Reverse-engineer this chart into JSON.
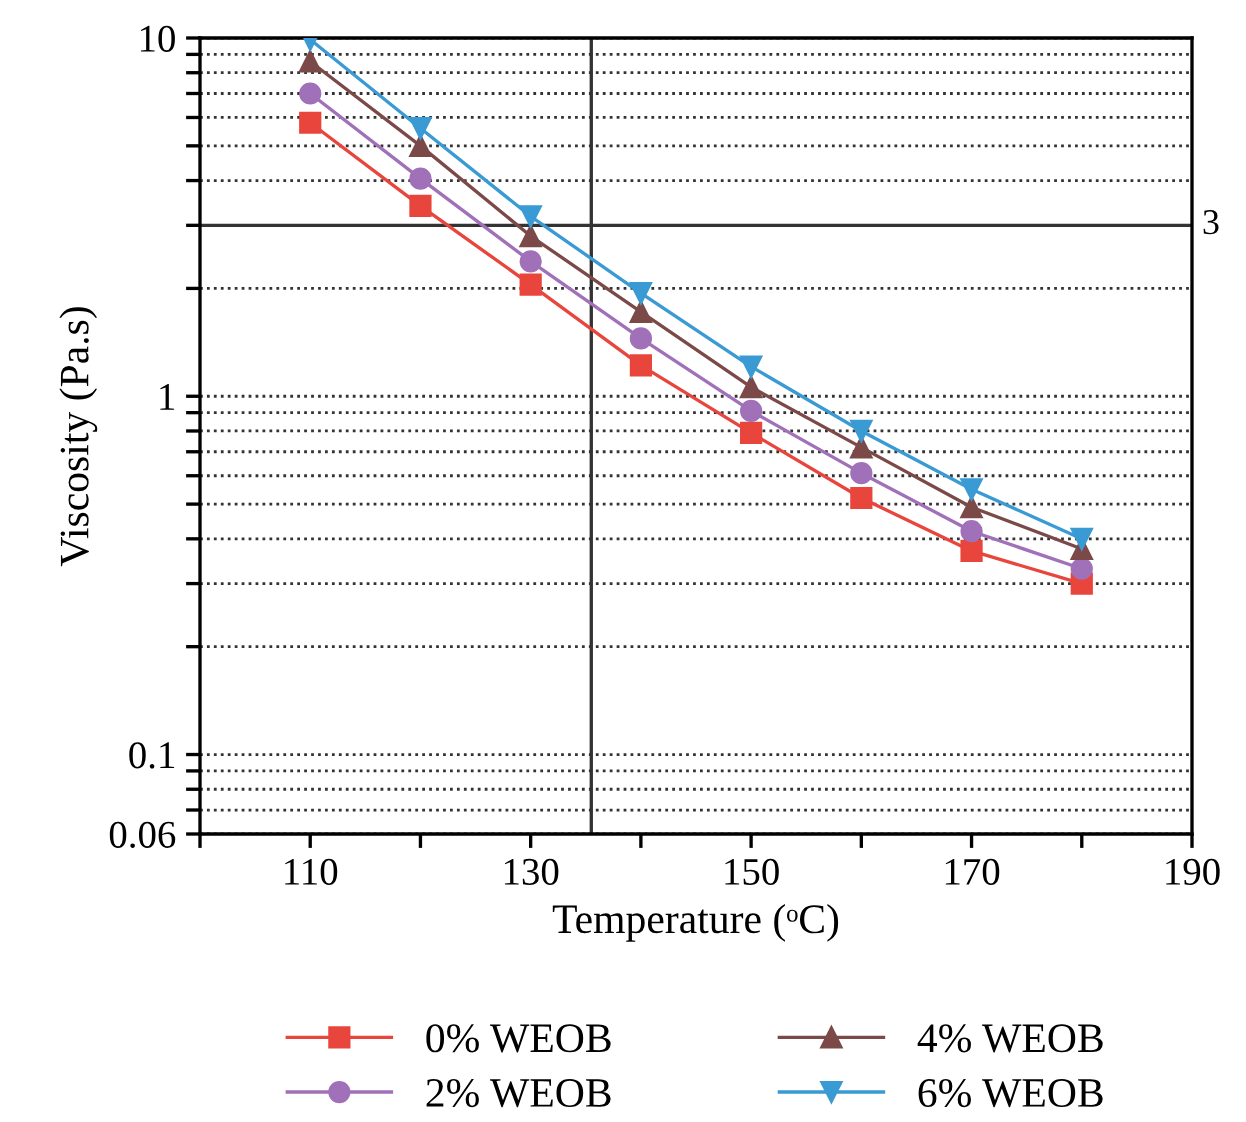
{
  "chart_data": {
    "type": "line",
    "xlabel": "Temperature (ᵒC)",
    "ylabel": "Viscosity (Pa.s)",
    "x": [
      110,
      120,
      130,
      140,
      150,
      160,
      170,
      180
    ],
    "series": [
      {
        "name": "0% WEOB",
        "color": "#e8453c",
        "marker": "square",
        "values": [
          5.8,
          3.4,
          2.05,
          1.22,
          0.79,
          0.52,
          0.37,
          0.3
        ]
      },
      {
        "name": "2% WEOB",
        "color": "#a070b8",
        "marker": "circle",
        "values": [
          7.0,
          4.05,
          2.38,
          1.45,
          0.91,
          0.61,
          0.42,
          0.33
        ]
      },
      {
        "name": "4% WEOB",
        "color": "#7b4a48",
        "marker": "triangle",
        "values": [
          8.6,
          5.0,
          2.8,
          1.72,
          1.06,
          0.72,
          0.49,
          0.375
        ]
      },
      {
        "name": "6% WEOB",
        "color": "#3a9ad4",
        "marker": "triangle_down",
        "values": [
          9.9,
          5.6,
          3.18,
          1.94,
          1.21,
          0.8,
          0.55,
          0.4
        ]
      }
    ],
    "log": "y",
    "xlim": [
      100,
      190
    ],
    "ylim": [
      0.06,
      10
    ],
    "xticks": [
      {
        "value": 100,
        "label": null
      },
      110,
      {
        "value": 120,
        "label": null
      },
      130,
      {
        "value": 140,
        "label": null
      },
      150,
      {
        "value": 160,
        "label": null
      },
      170,
      {
        "value": 180,
        "label": null
      },
      190
    ],
    "yticks": [
      {
        "value": 0.06,
        "label": "0.06"
      },
      {
        "value": 0.07,
        "label": null
      },
      {
        "value": 0.08,
        "label": null
      },
      {
        "value": 0.09,
        "label": null
      },
      {
        "value": 0.1,
        "label": "0.1"
      },
      {
        "value": 0.2,
        "label": null
      },
      {
        "value": 0.3,
        "label": null
      },
      {
        "value": 0.4,
        "label": null
      },
      {
        "value": 0.5,
        "label": null
      },
      {
        "value": 0.6,
        "label": null
      },
      {
        "value": 0.7,
        "label": null
      },
      {
        "value": 0.8,
        "label": null
      },
      {
        "value": 0.9,
        "label": null
      },
      1,
      {
        "value": 2,
        "label": null
      },
      {
        "value": 3,
        "label": null
      },
      {
        "value": 4,
        "label": null
      },
      {
        "value": 5,
        "label": null
      },
      {
        "value": 6,
        "label": null
      },
      {
        "value": 7,
        "label": null
      },
      {
        "value": 8,
        "label": null
      },
      {
        "value": 9,
        "label": null
      },
      10
    ],
    "grid": "y",
    "legend": "bottom",
    "line_style": "solid",
    "ref_lines": [
      {
        "axis": "y",
        "value": 3,
        "label": "3"
      },
      {
        "axis": "x",
        "value": 135.5
      }
    ]
  }
}
